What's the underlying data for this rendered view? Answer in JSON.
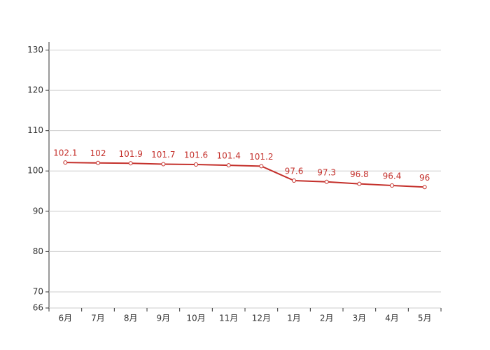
{
  "chart_data": {
    "type": "line",
    "categories": [
      "6月",
      "7月",
      "8月",
      "9月",
      "10月",
      "11月",
      "12月",
      "1月",
      "2月",
      "3月",
      "4月",
      "5月"
    ],
    "series": [
      {
        "color": "#c4302b",
        "values": [
          102.1,
          102,
          101.9,
          101.7,
          101.6,
          101.4,
          101.2,
          97.6,
          97.3,
          96.8,
          96.4,
          96
        ]
      }
    ],
    "ylim": [
      66,
      132
    ],
    "yticks": [
      66,
      70,
      80,
      90,
      100,
      110,
      120,
      130
    ],
    "grid": true
  }
}
